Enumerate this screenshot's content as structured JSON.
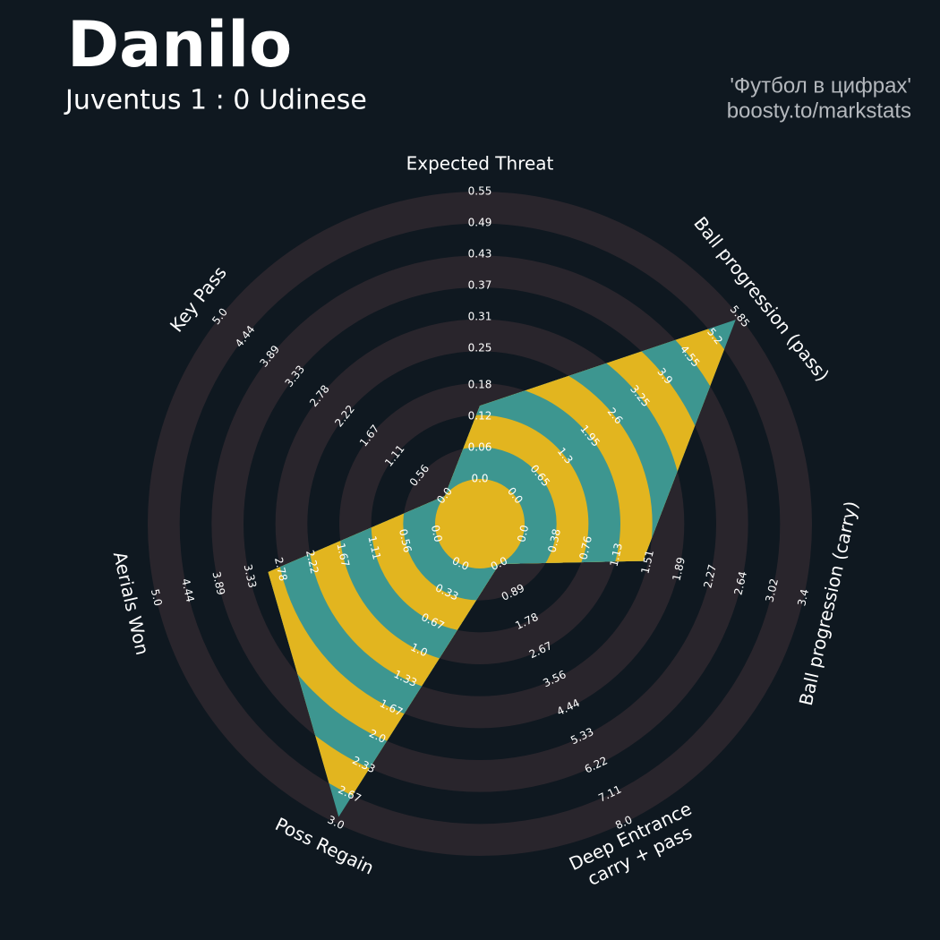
{
  "chart_data": {
    "type": "radar",
    "title": "Danilo",
    "subtitle": "Juventus 1 : 0 Udinese",
    "credits": [
      "'Футбол в цифрах'",
      "boosty.to/markstats"
    ],
    "params": [
      "Expected Threat",
      "Ball progression (pass)",
      "Ball progression (carry)",
      [
        "Deep Entrance",
        "carry + pass"
      ],
      "Poss Regain",
      "Aerials Won",
      "Key Pass"
    ],
    "values": [
      0.14,
      5.75,
      1.45,
      0,
      2.93,
      3.0,
      0
    ],
    "rlims": [
      [
        0,
        0.55
      ],
      [
        0,
        5.85
      ],
      [
        0,
        3.4
      ],
      [
        0,
        8
      ],
      [
        0,
        3
      ],
      [
        0,
        5
      ],
      [
        0,
        5
      ]
    ],
    "ticks": [
      [
        {
          "value": 0,
          "label": "0.0"
        },
        0.06,
        0.12,
        0.18,
        0.25,
        0.31,
        0.37,
        0.43,
        0.49,
        0.55
      ],
      [
        {
          "value": 0,
          "label": "0.0"
        },
        0.65,
        1.3,
        1.95,
        2.6,
        3.25,
        3.9,
        4.55,
        5.2,
        5.85
      ],
      [
        {
          "value": 0,
          "label": "0.0"
        },
        0.38,
        0.76,
        1.13,
        1.51,
        1.89,
        2.27,
        2.64,
        3.02,
        3.4
      ],
      [
        {
          "value": 0,
          "label": "0.0"
        },
        0.89,
        1.78,
        2.67,
        3.56,
        4.44,
        5.33,
        6.22,
        7.11,
        {
          "value": 8,
          "label": "8.0"
        }
      ],
      [
        {
          "value": 0,
          "label": "0.0"
        },
        0.33,
        0.67,
        {
          "value": 1,
          "label": "1.0"
        },
        1.33,
        1.67,
        {
          "value": 2,
          "label": "2.0"
        },
        2.33,
        2.67,
        {
          "value": 3,
          "label": "3.0"
        }
      ],
      [
        {
          "value": 0,
          "label": "0.0"
        },
        0.56,
        1.11,
        1.67,
        2.22,
        2.78,
        3.33,
        3.89,
        4.44,
        {
          "value": 5,
          "label": "5.0"
        }
      ],
      [
        {
          "value": 0,
          "label": "0.0"
        },
        0.56,
        1.11,
        1.67,
        2.22,
        2.78,
        3.33,
        3.89,
        4.44,
        {
          "value": 5,
          "label": "5.0"
        }
      ]
    ],
    "colors": {
      "area": "#3d9690",
      "area_alt": "#e2b51f",
      "ring": "#29252c",
      "ring_alt": "#0f1820"
    }
  }
}
